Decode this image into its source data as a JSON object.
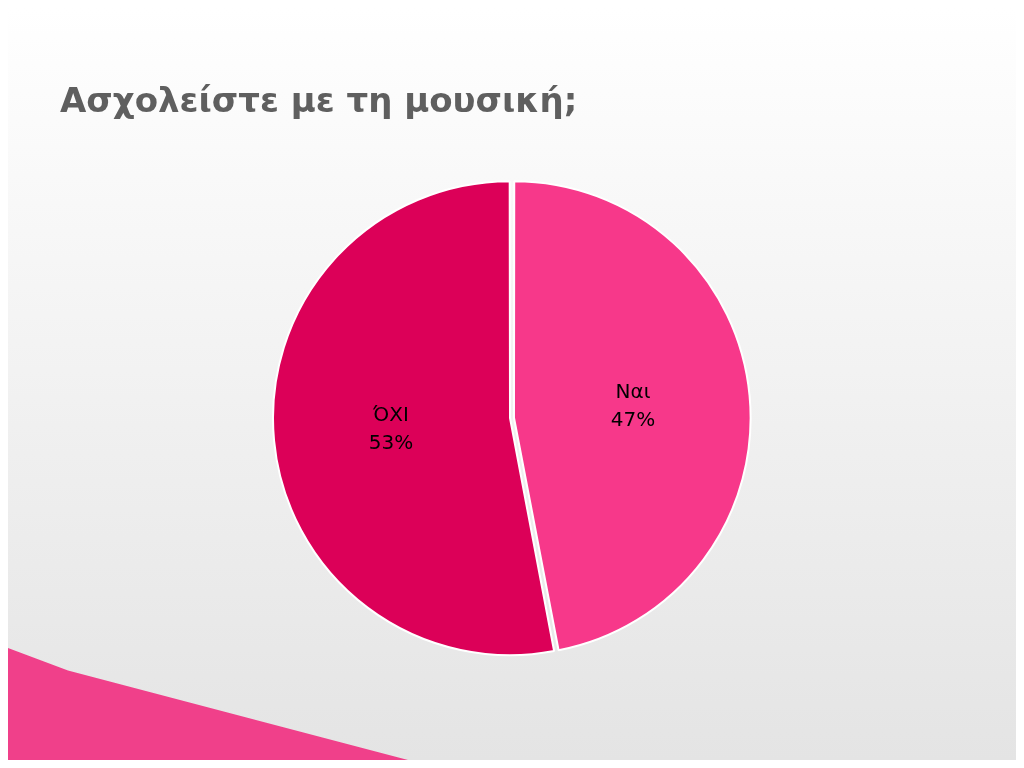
{
  "chart_data": {
    "type": "pie",
    "title": "Ασχολείστε με τη μουσική;",
    "categories": [
      "Ναι",
      "ΌΧΙ"
    ],
    "values": [
      47,
      53
    ],
    "colors": [
      "#f7388a",
      "#dc0058"
    ],
    "value_labels": [
      "47%",
      "53%"
    ],
    "legend": false
  }
}
